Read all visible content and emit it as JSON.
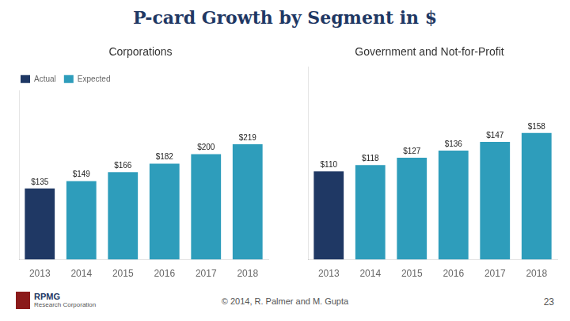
{
  "title": "P-card Growth by Segment in $",
  "annotations": [
    "© 2014, R. Palmer and M. Gupta",
    "23",
    "RPMG",
    "Research Corporation"
  ],
  "chart_data": [
    {
      "type": "bar",
      "title": "Corporations",
      "categories": [
        "2013",
        "2014",
        "2015",
        "2016",
        "2017",
        "2018"
      ],
      "series": [
        {
          "name": "Actual",
          "color": "#1F3864",
          "values": [
            135,
            null,
            null,
            null,
            null,
            null
          ],
          "value_labels": [
            "$135",
            null,
            null,
            null,
            null,
            null
          ]
        },
        {
          "name": "Expected",
          "color": "#2E9DBB",
          "values": [
            null,
            149,
            166,
            182,
            200,
            219
          ],
          "value_labels": [
            null,
            "$149",
            "$166",
            "$182",
            "$200",
            "$219"
          ]
        }
      ],
      "ylim": [
        0,
        320
      ],
      "grid": false,
      "legend": "upper left",
      "data_labels": true,
      "tick_labels": "x"
    },
    {
      "type": "bar",
      "title": "Government and Not-for-Profit",
      "categories": [
        "2013",
        "2014",
        "2015",
        "2016",
        "2017",
        "2018"
      ],
      "series": [
        {
          "name": "Actual",
          "color": "#1F3864",
          "values": [
            110,
            null,
            null,
            null,
            null,
            null
          ],
          "value_labels": [
            "$110",
            null,
            null,
            null,
            null,
            null
          ]
        },
        {
          "name": "Expected",
          "color": "#2E9DBB",
          "values": [
            null,
            118,
            127,
            136,
            147,
            158
          ],
          "value_labels": [
            null,
            "$118",
            "$127",
            "$136",
            "$147",
            "$158"
          ]
        }
      ],
      "ylim": [
        0,
        240
      ],
      "grid": false,
      "data_labels": true,
      "tick_labels": "x"
    }
  ]
}
